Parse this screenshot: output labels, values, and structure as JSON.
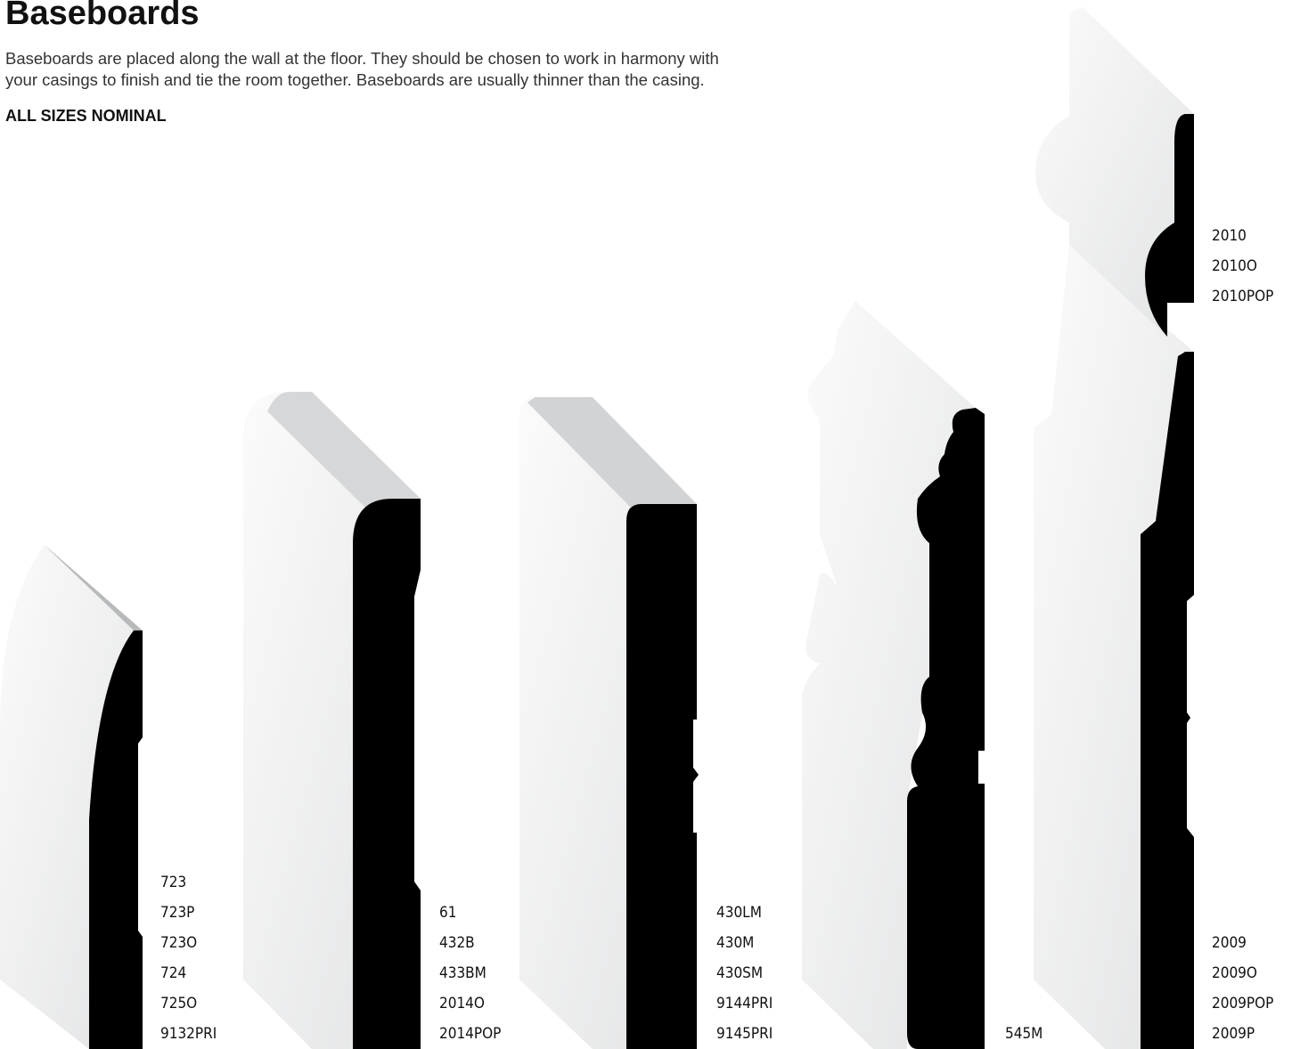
{
  "header": {
    "title": "Baseboards",
    "description_lines": [
      "Baseboards are placed along the wall at the floor. They should be chosen to work in harmony with",
      "your casings to finish and tie the room together. Baseboards are usually thinner than the casing."
    ],
    "note": "ALL SIZES NOMINAL"
  },
  "profiles": [
    {
      "codes": [
        "723",
        "723P",
        "723O",
        "724",
        "725O",
        "9132PRI"
      ]
    },
    {
      "codes": [
        "61",
        "432B",
        "433BM",
        "2014O",
        "2014POP"
      ]
    },
    {
      "codes": [
        "430LM",
        "430M",
        "430SM",
        "9144PRI",
        "9145PRI"
      ]
    },
    {
      "codes": [
        "545M"
      ]
    },
    {
      "codes": [
        "2009",
        "2009O",
        "2009POP",
        "2009P"
      ]
    },
    {
      "codes": [
        "2010",
        "2010O",
        "2010POP"
      ]
    }
  ]
}
